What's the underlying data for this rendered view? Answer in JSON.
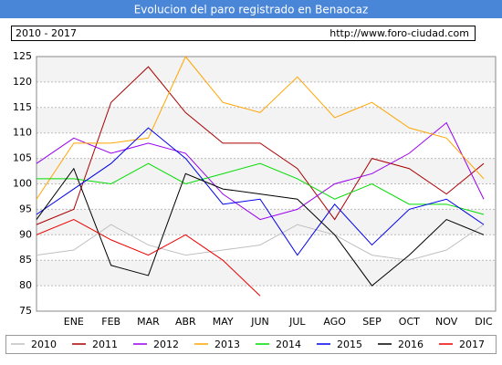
{
  "chart_data": {
    "type": "line",
    "title": "Evolucion del paro registrado en Benaocaz",
    "subtitle": "2010 - 2017",
    "source": "http://www.foro-ciudad.com",
    "categories": [
      null,
      "ENE",
      "FEB",
      "MAR",
      "ABR",
      "MAY",
      "JUN",
      "JUL",
      "AGO",
      "SEP",
      "OCT",
      "NOV",
      "DIC"
    ],
    "series": [
      {
        "name": "2010",
        "color": "#c0c0c0",
        "values": [
          86,
          87,
          92,
          88,
          86,
          87,
          88,
          92,
          90,
          86,
          85,
          87,
          92
        ]
      },
      {
        "name": "2011",
        "color": "#aa0000",
        "values": [
          92,
          95,
          116,
          123,
          114,
          108,
          108,
          103,
          93,
          105,
          103,
          98,
          104
        ]
      },
      {
        "name": "2012",
        "color": "#9900ee",
        "values": [
          104,
          109,
          106,
          108,
          106,
          98,
          93,
          95,
          100,
          102,
          106,
          112,
          97
        ]
      },
      {
        "name": "2013",
        "color": "#ffa500",
        "values": [
          97,
          108,
          108,
          109,
          125,
          116,
          114,
          121,
          113,
          116,
          111,
          109,
          101
        ]
      },
      {
        "name": "2014",
        "color": "#00dd00",
        "values": [
          101,
          101,
          100,
          104,
          100,
          102,
          104,
          101,
          97,
          100,
          96,
          96,
          94
        ]
      },
      {
        "name": "2015",
        "color": "#0000ee",
        "values": [
          94,
          99,
          104,
          111,
          105,
          96,
          97,
          86,
          96,
          88,
          95,
          97,
          92
        ]
      },
      {
        "name": "2016",
        "color": "#000000",
        "values": [
          93,
          103,
          84,
          82,
          102,
          99,
          98,
          97,
          90,
          80,
          86,
          93,
          90
        ]
      },
      {
        "name": "2017",
        "color": "#ee0000",
        "values": [
          90,
          93,
          89,
          86,
          90,
          85,
          78,
          null,
          null,
          null,
          null,
          null,
          null
        ]
      }
    ],
    "ylim": [
      75,
      125
    ],
    "yticks": [
      75,
      80,
      85,
      90,
      95,
      100,
      105,
      110,
      115,
      120,
      125
    ],
    "grid": true
  }
}
